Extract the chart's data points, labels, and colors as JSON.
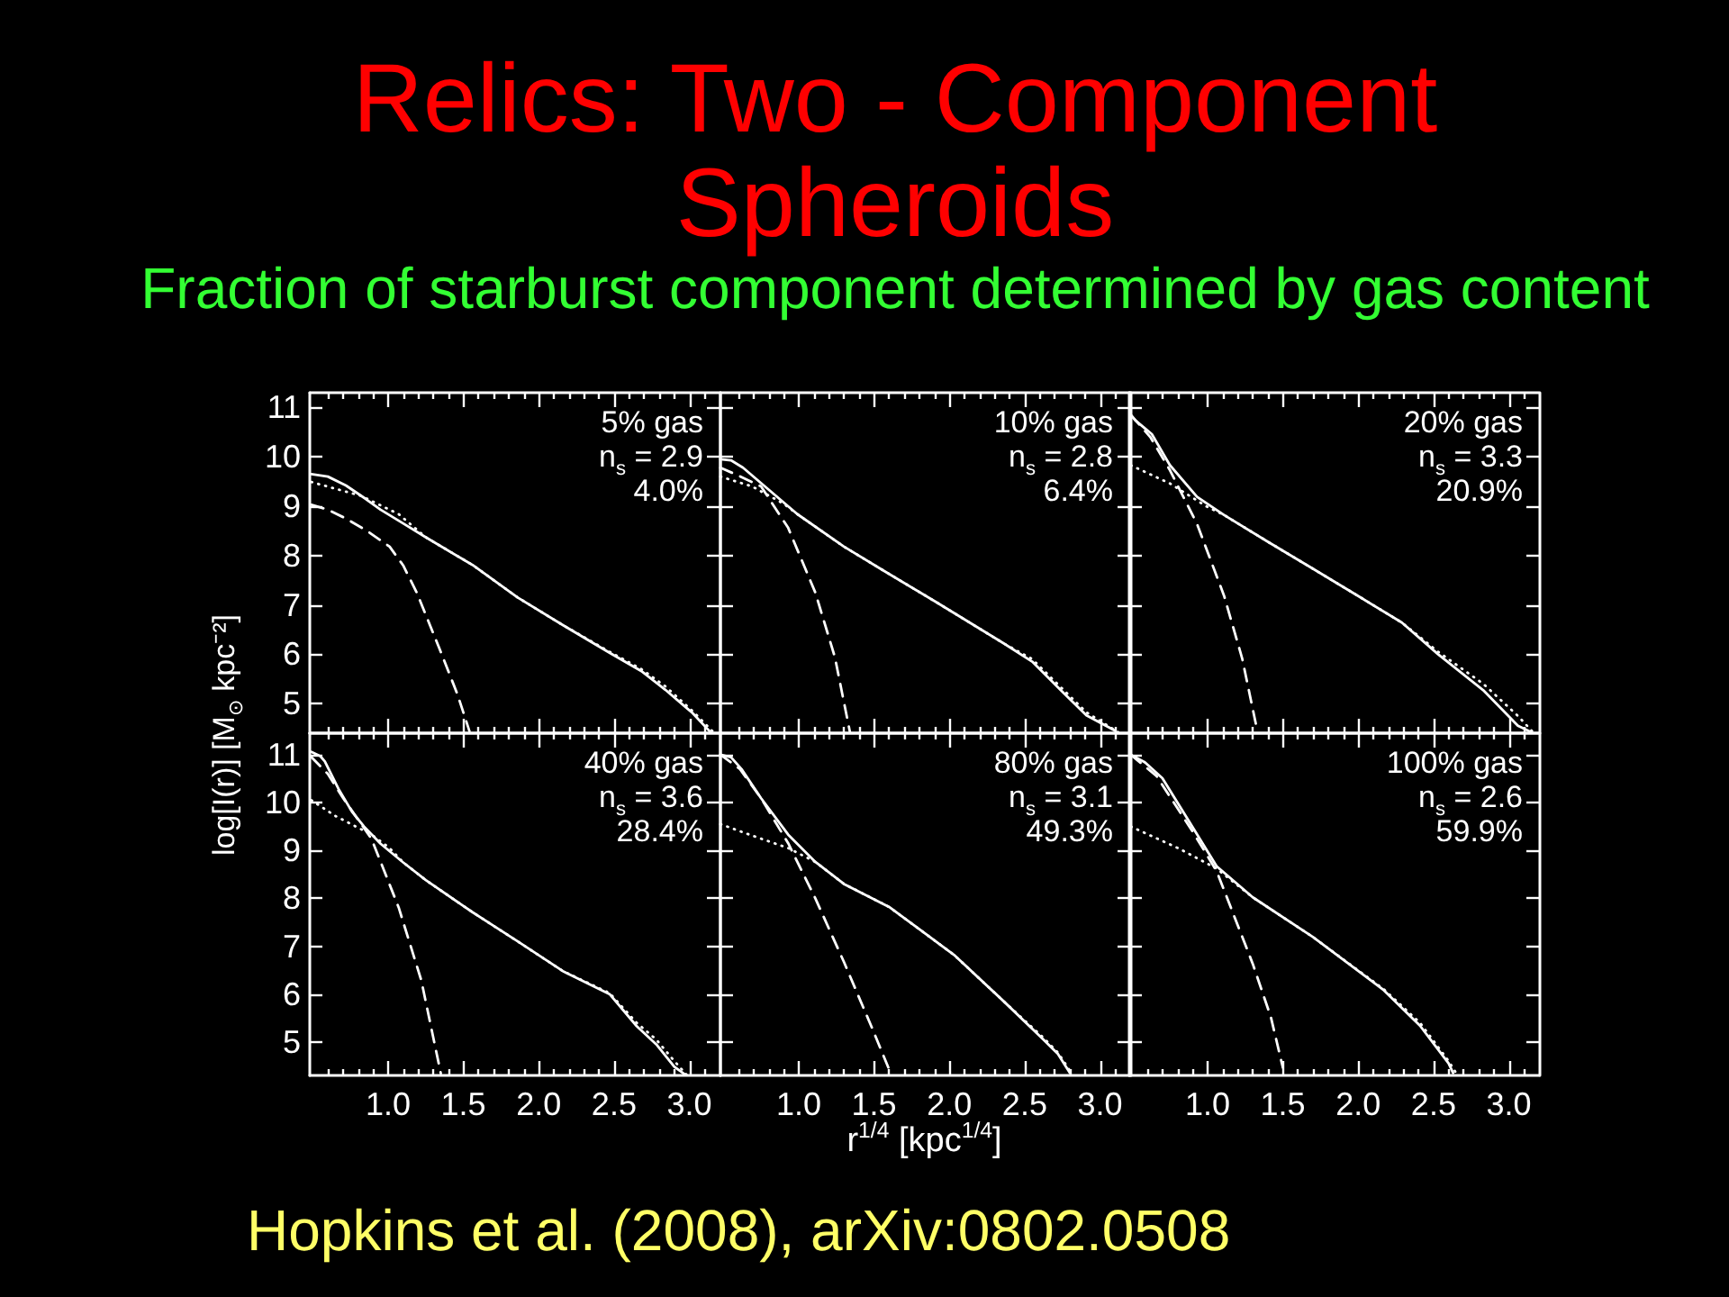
{
  "chart_data": [
    {
      "type": "other",
      "title": "Relics: Two - Component Spheroids",
      "subtitle": "Fraction of starburst component determined by gas content",
      "annotations": [
        "Hopkins et al. (2008), arXiv:0802.0508"
      ]
    },
    {
      "type": "line",
      "ylabel": "log[I(r)] [M$_{⊙}$ kpc⁻²]",
      "annotations": [
        "5% gas",
        "n$_{s}$ = 2.9",
        "4.0%"
      ],
      "tick_labels": "y",
      "xlim": [
        0.48,
        3.2
      ],
      "ylim": [
        4.4,
        11.3
      ],
      "xticks": [
        {
          "value": 0.6,
          "label": null
        },
        {
          "value": 0.7,
          "label": null
        },
        {
          "value": 0.8,
          "label": null
        },
        {
          "value": 0.9,
          "label": null
        },
        {
          "value": 1,
          "label": null
        },
        {
          "value": 1.1,
          "label": null
        },
        {
          "value": 1.2,
          "label": null
        },
        {
          "value": 1.3,
          "label": null
        },
        {
          "value": 1.4,
          "label": null
        },
        {
          "value": 1.5,
          "label": null
        },
        {
          "value": 1.6,
          "label": null
        },
        {
          "value": 1.7,
          "label": null
        },
        {
          "value": 1.8,
          "label": null
        },
        {
          "value": 1.9,
          "label": null
        },
        {
          "value": 2,
          "label": null
        },
        {
          "value": 2.1,
          "label": null
        },
        {
          "value": 2.2,
          "label": null
        },
        {
          "value": 2.3,
          "label": null
        },
        {
          "value": 2.4,
          "label": null
        },
        {
          "value": 2.5,
          "label": null
        },
        {
          "value": 2.6,
          "label": null
        },
        {
          "value": 2.7,
          "label": null
        },
        {
          "value": 2.8,
          "label": null
        },
        {
          "value": 2.9,
          "label": null
        },
        {
          "value": 3,
          "label": null
        },
        {
          "value": 3.1,
          "label": null
        }
      ],
      "yticks": [
        5,
        6,
        7,
        8,
        9,
        10,
        11
      ],
      "series": [
        {
          "color": "#ffffff",
          "line_style": "solid",
          "x": [
            0.49,
            0.6,
            0.72,
            0.85,
            0.95,
            1.1,
            1.25,
            1.56,
            1.86,
            2.16,
            2.47,
            2.68,
            2.84,
            3.02,
            3.14
          ],
          "values": [
            9.65,
            9.6,
            9.42,
            9.15,
            8.93,
            8.65,
            8.37,
            7.81,
            7.15,
            6.59,
            6.03,
            5.66,
            5.28,
            4.81,
            4.42
          ]
        },
        {
          "color": "#ffffff",
          "line_style": "dotted",
          "x": [
            0.49,
            0.82,
            1.07,
            1.25,
            1.56,
            1.86,
            2.16,
            2.47,
            2.68,
            2.84,
            3.02,
            3.16
          ],
          "values": [
            9.49,
            9.21,
            8.84,
            8.37,
            7.81,
            7.15,
            6.59,
            6.05,
            5.7,
            5.35,
            4.85,
            4.42
          ]
        },
        {
          "color": "#ffffff",
          "line_style": "dashed",
          "x": [
            0.49,
            0.6,
            0.72,
            0.86,
            1.01,
            1.1,
            1.19,
            1.34,
            1.46,
            1.54
          ],
          "values": [
            9.03,
            8.93,
            8.75,
            8.5,
            8.18,
            7.8,
            7.25,
            6.12,
            5.19,
            4.44
          ]
        }
      ]
    },
    {
      "type": "line",
      "annotations": [
        "10% gas",
        "n$_{s}$ = 2.8",
        "6.4%"
      ],
      "tick_labels": false,
      "xlim": [
        0.48,
        3.2
      ],
      "ylim": [
        4.4,
        11.3
      ],
      "xticks": [
        {
          "value": 0.6,
          "label": null
        },
        {
          "value": 0.7,
          "label": null
        },
        {
          "value": 0.8,
          "label": null
        },
        {
          "value": 0.9,
          "label": null
        },
        {
          "value": 1,
          "label": null
        },
        {
          "value": 1.1,
          "label": null
        },
        {
          "value": 1.2,
          "label": null
        },
        {
          "value": 1.3,
          "label": null
        },
        {
          "value": 1.4,
          "label": null
        },
        {
          "value": 1.5,
          "label": null
        },
        {
          "value": 1.6,
          "label": null
        },
        {
          "value": 1.7,
          "label": null
        },
        {
          "value": 1.8,
          "label": null
        },
        {
          "value": 1.9,
          "label": null
        },
        {
          "value": 2,
          "label": null
        },
        {
          "value": 2.1,
          "label": null
        },
        {
          "value": 2.2,
          "label": null
        },
        {
          "value": 2.3,
          "label": null
        },
        {
          "value": 2.4,
          "label": null
        },
        {
          "value": 2.5,
          "label": null
        },
        {
          "value": 2.6,
          "label": null
        },
        {
          "value": 2.7,
          "label": null
        },
        {
          "value": 2.8,
          "label": null
        },
        {
          "value": 2.9,
          "label": null
        },
        {
          "value": 3,
          "label": null
        },
        {
          "value": 3.1,
          "label": null
        }
      ],
      "yticks": [
        {
          "value": 5,
          "label": null
        },
        {
          "value": 6,
          "label": null
        },
        {
          "value": 7,
          "label": null
        },
        {
          "value": 8,
          "label": null
        },
        {
          "value": 9,
          "label": null
        },
        {
          "value": 10,
          "label": null
        },
        {
          "value": 11,
          "label": null
        }
      ],
      "series": [
        {
          "color": "#ffffff",
          "line_style": "solid",
          "x": [
            0.48,
            0.55,
            0.63,
            0.81,
            0.99,
            1.3,
            1.56,
            1.91,
            2.36,
            2.55,
            2.75,
            2.91,
            3.1
          ],
          "values": [
            9.95,
            9.93,
            9.78,
            9.31,
            8.84,
            8.18,
            7.7,
            7.06,
            6.22,
            5.85,
            5.24,
            4.76,
            4.45
          ]
        },
        {
          "color": "#ffffff",
          "line_style": "dotted",
          "x": [
            0.48,
            0.69,
            0.9,
            0.99,
            1.3,
            1.56,
            1.91,
            2.36,
            2.55,
            2.75,
            2.91,
            3.12
          ],
          "values": [
            9.6,
            9.4,
            9.05,
            8.84,
            8.18,
            7.7,
            7.06,
            6.22,
            5.9,
            5.3,
            4.82,
            4.42
          ]
        },
        {
          "color": "#ffffff",
          "line_style": "dashed",
          "x": [
            0.48,
            0.6,
            0.75,
            0.93,
            1.11,
            1.24,
            1.34
          ],
          "values": [
            9.78,
            9.62,
            9.4,
            8.56,
            7.25,
            5.94,
            4.42
          ]
        }
      ]
    },
    {
      "type": "line",
      "annotations": [
        "20% gas",
        "n$_{s}$ = 3.3",
        "20.9%"
      ],
      "tick_labels": false,
      "xlim": [
        0.48,
        3.2
      ],
      "ylim": [
        4.4,
        11.3
      ],
      "xticks": [
        {
          "value": 0.6,
          "label": null
        },
        {
          "value": 0.7,
          "label": null
        },
        {
          "value": 0.8,
          "label": null
        },
        {
          "value": 0.9,
          "label": null
        },
        {
          "value": 1,
          "label": null
        },
        {
          "value": 1.1,
          "label": null
        },
        {
          "value": 1.2,
          "label": null
        },
        {
          "value": 1.3,
          "label": null
        },
        {
          "value": 1.4,
          "label": null
        },
        {
          "value": 1.5,
          "label": null
        },
        {
          "value": 1.6,
          "label": null
        },
        {
          "value": 1.7,
          "label": null
        },
        {
          "value": 1.8,
          "label": null
        },
        {
          "value": 1.9,
          "label": null
        },
        {
          "value": 2,
          "label": null
        },
        {
          "value": 2.1,
          "label": null
        },
        {
          "value": 2.2,
          "label": null
        },
        {
          "value": 2.3,
          "label": null
        },
        {
          "value": 2.4,
          "label": null
        },
        {
          "value": 2.5,
          "label": null
        },
        {
          "value": 2.6,
          "label": null
        },
        {
          "value": 2.7,
          "label": null
        },
        {
          "value": 2.8,
          "label": null
        },
        {
          "value": 2.9,
          "label": null
        },
        {
          "value": 3,
          "label": null
        },
        {
          "value": 3.1,
          "label": null
        }
      ],
      "yticks": [
        {
          "value": 5,
          "label": null
        },
        {
          "value": 6,
          "label": null
        },
        {
          "value": 7,
          "label": null
        },
        {
          "value": 8,
          "label": null
        },
        {
          "value": 9,
          "label": null
        },
        {
          "value": 10,
          "label": null
        },
        {
          "value": 11,
          "label": null
        }
      ],
      "series": [
        {
          "color": "#ffffff",
          "line_style": "solid",
          "x": [
            0.49,
            0.52,
            0.63,
            0.75,
            0.93,
            1.11,
            1.4,
            1.7,
            2.0,
            2.29,
            2.53,
            2.83,
            3.06,
            3.15
          ],
          "values": [
            10.85,
            10.74,
            10.46,
            9.83,
            9.19,
            8.82,
            8.28,
            7.73,
            7.18,
            6.64,
            6.0,
            5.27,
            4.55,
            4.42
          ]
        },
        {
          "color": "#ffffff",
          "line_style": "dotted",
          "x": [
            0.49,
            0.75,
            0.99,
            1.11,
            1.4,
            1.7,
            2.0,
            2.29,
            2.53,
            2.83,
            3.06,
            3.16
          ],
          "values": [
            9.83,
            9.46,
            9.0,
            8.82,
            8.28,
            7.73,
            7.18,
            6.64,
            6.05,
            5.4,
            4.75,
            4.42
          ]
        },
        {
          "color": "#ffffff",
          "line_style": "dashed",
          "x": [
            0.49,
            0.62,
            0.75,
            0.93,
            1.11,
            1.23,
            1.33
          ],
          "values": [
            10.85,
            10.4,
            9.73,
            8.64,
            7.18,
            5.91,
            4.45
          ]
        }
      ]
    },
    {
      "type": "line",
      "annotations": [
        "40% gas",
        "n$_{s}$ = 3.6",
        "28.4%"
      ],
      "xlim": [
        0.48,
        3.2
      ],
      "ylim": [
        4.3,
        11.45
      ],
      "xticks": [
        {
          "value": 0.6,
          "label": null
        },
        {
          "value": 0.7,
          "label": null
        },
        {
          "value": 0.8,
          "label": null
        },
        {
          "value": 0.9,
          "label": null
        },
        {
          "value": 1,
          "label": "1.0"
        },
        {
          "value": 1.1,
          "label": null
        },
        {
          "value": 1.2,
          "label": null
        },
        {
          "value": 1.3,
          "label": null
        },
        {
          "value": 1.4,
          "label": null
        },
        {
          "value": 1.5,
          "label": "1.5"
        },
        {
          "value": 1.6,
          "label": null
        },
        {
          "value": 1.7,
          "label": null
        },
        {
          "value": 1.8,
          "label": null
        },
        {
          "value": 1.9,
          "label": null
        },
        {
          "value": 2,
          "label": "2.0"
        },
        {
          "value": 2.1,
          "label": null
        },
        {
          "value": 2.2,
          "label": null
        },
        {
          "value": 2.3,
          "label": null
        },
        {
          "value": 2.4,
          "label": null
        },
        {
          "value": 2.5,
          "label": "2.5"
        },
        {
          "value": 2.6,
          "label": null
        },
        {
          "value": 2.7,
          "label": null
        },
        {
          "value": 2.8,
          "label": null
        },
        {
          "value": 2.9,
          "label": null
        },
        {
          "value": 3,
          "label": "3.0"
        },
        {
          "value": 3.1,
          "label": null
        }
      ],
      "yticks": [
        5,
        6,
        7,
        8,
        9,
        10,
        11
      ],
      "series": [
        {
          "color": "#ffffff",
          "line_style": "solid",
          "x": [
            0.49,
            0.55,
            0.58,
            0.67,
            0.76,
            0.84,
            0.95,
            1.1,
            1.25,
            1.56,
            1.86,
            2.16,
            2.47,
            2.65,
            2.78,
            2.9,
            2.97
          ],
          "values": [
            11.06,
            10.97,
            10.86,
            10.29,
            9.81,
            9.5,
            9.14,
            8.75,
            8.38,
            7.71,
            7.1,
            6.48,
            6.0,
            5.33,
            4.95,
            4.48,
            4.32
          ]
        },
        {
          "color": "#ffffff",
          "line_style": "dotted",
          "x": [
            0.49,
            0.65,
            0.89,
            1.01,
            1.1,
            1.25,
            1.56,
            1.86,
            2.16,
            2.47,
            2.65,
            2.78,
            2.9,
            2.98
          ],
          "values": [
            10.05,
            9.72,
            9.33,
            9.05,
            8.75,
            8.38,
            7.71,
            7.1,
            6.48,
            6.02,
            5.4,
            5.05,
            4.6,
            4.32
          ]
        },
        {
          "color": "#ffffff",
          "line_style": "dashed",
          "x": [
            0.49,
            0.6,
            0.7,
            0.89,
            1.07,
            1.22,
            1.35
          ],
          "values": [
            10.95,
            10.6,
            10.1,
            9.24,
            7.81,
            6.29,
            4.34
          ]
        }
      ]
    },
    {
      "type": "line",
      "xlabel": "r$^{1/4}$ [kpc$^{1/4}$]",
      "annotations": [
        "80% gas",
        "n$_{s}$ = 3.1",
        "49.3%"
      ],
      "tick_labels": "x",
      "xlim": [
        0.48,
        3.2
      ],
      "ylim": [
        4.3,
        11.45
      ],
      "xticks": [
        {
          "value": 0.6,
          "label": null
        },
        {
          "value": 0.7,
          "label": null
        },
        {
          "value": 0.8,
          "label": null
        },
        {
          "value": 0.9,
          "label": null
        },
        {
          "value": 1,
          "label": "1.0"
        },
        {
          "value": 1.1,
          "label": null
        },
        {
          "value": 1.2,
          "label": null
        },
        {
          "value": 1.3,
          "label": null
        },
        {
          "value": 1.4,
          "label": null
        },
        {
          "value": 1.5,
          "label": "1.5"
        },
        {
          "value": 1.6,
          "label": null
        },
        {
          "value": 1.7,
          "label": null
        },
        {
          "value": 1.8,
          "label": null
        },
        {
          "value": 1.9,
          "label": null
        },
        {
          "value": 2,
          "label": "2.0"
        },
        {
          "value": 2.1,
          "label": null
        },
        {
          "value": 2.2,
          "label": null
        },
        {
          "value": 2.3,
          "label": null
        },
        {
          "value": 2.4,
          "label": null
        },
        {
          "value": 2.5,
          "label": "2.5"
        },
        {
          "value": 2.6,
          "label": null
        },
        {
          "value": 2.7,
          "label": null
        },
        {
          "value": 2.8,
          "label": null
        },
        {
          "value": 2.9,
          "label": null
        },
        {
          "value": 3,
          "label": "3.0"
        },
        {
          "value": 3.1,
          "label": null
        }
      ],
      "yticks": [
        {
          "value": 5,
          "label": null
        },
        {
          "value": 6,
          "label": null
        },
        {
          "value": 7,
          "label": null
        },
        {
          "value": 8,
          "label": null
        },
        {
          "value": 9,
          "label": null
        },
        {
          "value": 10,
          "label": null
        },
        {
          "value": 11,
          "label": null
        }
      ],
      "series": [
        {
          "color": "#ffffff",
          "line_style": "solid",
          "x": [
            0.48,
            0.55,
            0.62,
            0.75,
            0.93,
            1.11,
            1.3,
            1.6,
            2.03,
            2.36,
            2.62,
            2.72,
            2.8
          ],
          "values": [
            11.0,
            10.95,
            10.7,
            10.09,
            9.33,
            8.76,
            8.3,
            7.82,
            6.82,
            5.85,
            5.06,
            4.75,
            4.35
          ]
        },
        {
          "color": "#ffffff",
          "line_style": "dotted",
          "x": [
            0.48,
            0.7,
            0.93,
            1.11,
            1.3,
            1.6,
            2.03,
            2.36,
            2.62,
            2.72,
            2.81
          ],
          "values": [
            9.55,
            9.3,
            9.05,
            8.76,
            8.3,
            7.82,
            6.82,
            5.85,
            5.1,
            4.78,
            4.35
          ]
        },
        {
          "color": "#ffffff",
          "line_style": "dashed",
          "x": [
            0.48,
            0.61,
            0.75,
            0.93,
            1.11,
            1.3,
            1.48,
            1.61
          ],
          "values": [
            11.0,
            10.7,
            10.09,
            9.15,
            8.0,
            6.67,
            5.34,
            4.35
          ]
        }
      ]
    },
    {
      "type": "line",
      "annotations": [
        "100% gas",
        "n$_{s}$ = 2.6",
        "59.9%"
      ],
      "tick_labels": "x",
      "xlim": [
        0.48,
        3.2
      ],
      "ylim": [
        4.3,
        11.45
      ],
      "xticks": [
        {
          "value": 0.6,
          "label": null
        },
        {
          "value": 0.7,
          "label": null
        },
        {
          "value": 0.8,
          "label": null
        },
        {
          "value": 0.9,
          "label": null
        },
        {
          "value": 1,
          "label": "1.0"
        },
        {
          "value": 1.1,
          "label": null
        },
        {
          "value": 1.2,
          "label": null
        },
        {
          "value": 1.3,
          "label": null
        },
        {
          "value": 1.4,
          "label": null
        },
        {
          "value": 1.5,
          "label": "1.5"
        },
        {
          "value": 1.6,
          "label": null
        },
        {
          "value": 1.7,
          "label": null
        },
        {
          "value": 1.8,
          "label": null
        },
        {
          "value": 1.9,
          "label": null
        },
        {
          "value": 2,
          "label": "2.0"
        },
        {
          "value": 2.1,
          "label": null
        },
        {
          "value": 2.2,
          "label": null
        },
        {
          "value": 2.3,
          "label": null
        },
        {
          "value": 2.4,
          "label": null
        },
        {
          "value": 2.5,
          "label": "2.5"
        },
        {
          "value": 2.6,
          "label": null
        },
        {
          "value": 2.7,
          "label": null
        },
        {
          "value": 2.8,
          "label": null
        },
        {
          "value": 2.9,
          "label": null
        },
        {
          "value": 3,
          "label": "3.0"
        },
        {
          "value": 3.1,
          "label": null
        }
      ],
      "yticks": [
        {
          "value": 5,
          "label": null
        },
        {
          "value": 6,
          "label": null
        },
        {
          "value": 7,
          "label": null
        },
        {
          "value": 8,
          "label": null
        },
        {
          "value": 9,
          "label": null
        },
        {
          "value": 10,
          "label": null
        },
        {
          "value": 11,
          "label": null
        }
      ],
      "series": [
        {
          "color": "#ffffff",
          "line_style": "solid",
          "x": [
            0.49,
            0.58,
            0.7,
            0.88,
            1.06,
            1.3,
            1.7,
            2.17,
            2.41,
            2.6,
            2.63
          ],
          "values": [
            11.0,
            10.85,
            10.51,
            9.59,
            8.67,
            8.02,
            7.19,
            6.08,
            5.34,
            4.55,
            4.35
          ]
        },
        {
          "color": "#ffffff",
          "line_style": "dotted",
          "x": [
            0.49,
            0.81,
            1.06,
            1.3,
            1.7,
            2.17,
            2.41,
            2.6,
            2.65
          ],
          "values": [
            9.5,
            9.04,
            8.62,
            8.02,
            7.19,
            6.1,
            5.4,
            4.6,
            4.35
          ]
        },
        {
          "color": "#ffffff",
          "line_style": "dashed",
          "x": [
            0.49,
            0.66,
            0.9,
            1.06,
            1.3,
            1.42,
            1.5
          ],
          "values": [
            11.0,
            10.56,
            9.4,
            8.57,
            6.63,
            5.52,
            4.46
          ]
        }
      ]
    }
  ]
}
